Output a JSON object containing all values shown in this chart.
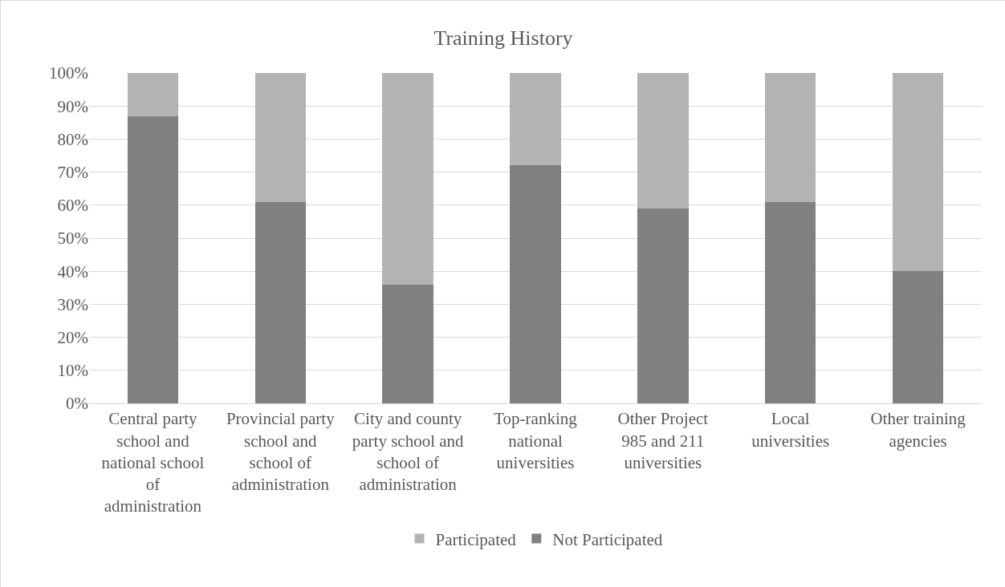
{
  "chart_data": {
    "type": "bar",
    "title": "Training History",
    "stacked": true,
    "categories": [
      "Central party school and national school of administration",
      "Provincial party school and school of administration",
      "City and county party school and school of administration",
      "Top-ranking national universities",
      "Other Project 985 and 211 universities",
      "Local universities",
      "Other training agencies"
    ],
    "series": [
      {
        "name": "Not Participated",
        "color": "#808080",
        "values": [
          87,
          61,
          36,
          72,
          59,
          61,
          40
        ]
      },
      {
        "name": "Participated",
        "color": "#b3b3b3",
        "values": [
          13,
          39,
          64,
          28,
          41,
          39,
          60
        ]
      }
    ],
    "ylim": [
      0,
      100
    ],
    "yticks": [
      {
        "value": 0,
        "label": "0%"
      },
      {
        "value": 10,
        "label": "10%"
      },
      {
        "value": 20,
        "label": "20%"
      },
      {
        "value": 30,
        "label": "30%"
      },
      {
        "value": 40,
        "label": "40%"
      },
      {
        "value": 50,
        "label": "50%"
      },
      {
        "value": 60,
        "label": "60%"
      },
      {
        "value": 70,
        "label": "70%"
      },
      {
        "value": 80,
        "label": "80%"
      },
      {
        "value": 90,
        "label": "90%"
      },
      {
        "value": 100,
        "label": "100%"
      }
    ],
    "grid": "y",
    "legend": "bottom"
  }
}
